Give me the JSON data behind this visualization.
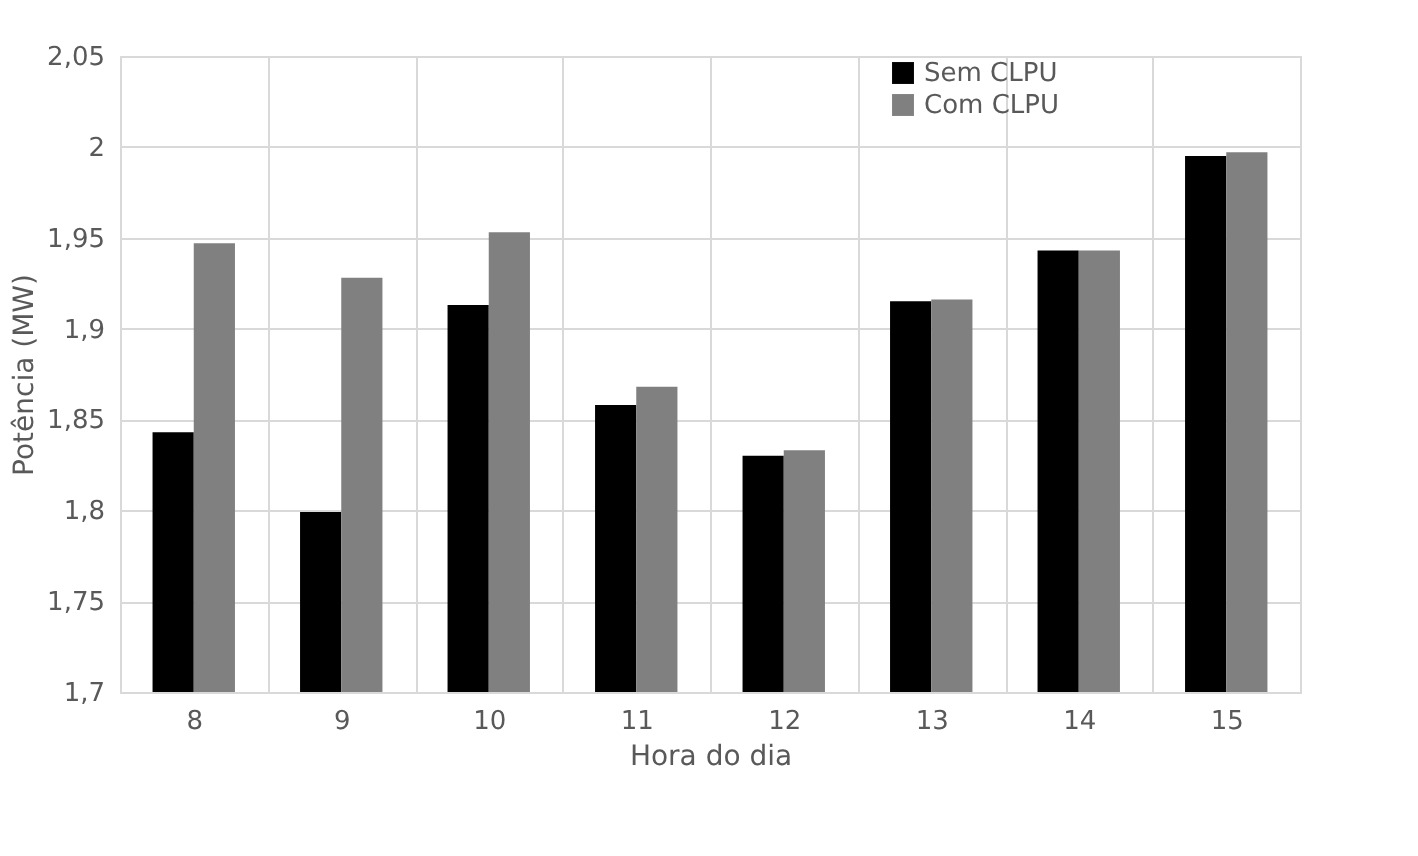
{
  "chart_data": {
    "type": "bar",
    "xlabel": "Hora do dia",
    "ylabel": "Potência (MW)",
    "categories": [
      "8",
      "9",
      "10",
      "11",
      "12",
      "13",
      "14",
      "15"
    ],
    "series": [
      {
        "name": "Sem CLPU",
        "color": "#000000",
        "values": [
          1.843,
          1.799,
          1.913,
          1.858,
          1.83,
          1.915,
          1.943,
          1.995
        ]
      },
      {
        "name": "Com CLPU",
        "color": "#808080",
        "values": [
          1.947,
          1.928,
          1.953,
          1.868,
          1.833,
          1.916,
          1.943,
          1.997
        ]
      }
    ],
    "ylim": [
      1.7,
      2.05
    ],
    "yticks": [
      {
        "value": 1.7,
        "label": "1,7"
      },
      {
        "value": 1.75,
        "label": "1,75"
      },
      {
        "value": 1.8,
        "label": "1,8"
      },
      {
        "value": 1.85,
        "label": "1,85"
      },
      {
        "value": 1.9,
        "label": "1,9"
      },
      {
        "value": 1.95,
        "label": "1,95"
      },
      {
        "value": 2,
        "label": "2"
      },
      {
        "value": 2.05,
        "label": "2,05"
      }
    ],
    "grid": true,
    "legend": "top right"
  }
}
